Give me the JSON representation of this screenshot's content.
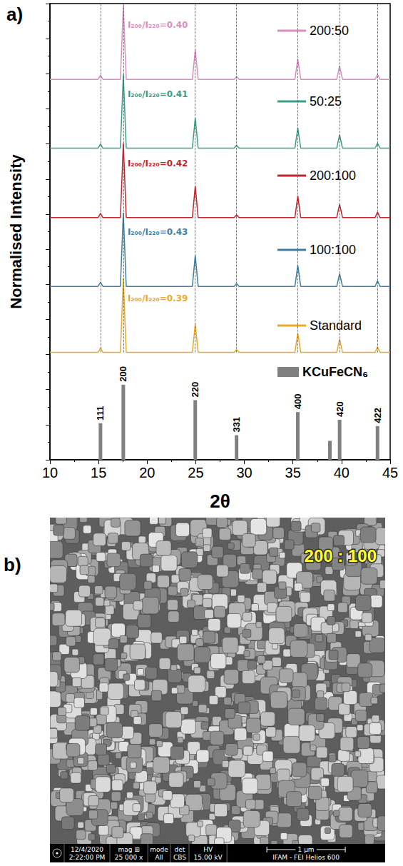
{
  "chart_data": {
    "type": "line",
    "panel_label": "a)",
    "xlabel": "2θ",
    "ylabel": "Normalised Intensity",
    "xlim": [
      10,
      45
    ],
    "xticks": [
      10,
      15,
      20,
      25,
      30,
      35,
      40,
      45
    ],
    "ylim": [
      0,
      13
    ],
    "yticks": [
      0,
      1,
      2,
      3,
      4,
      5,
      6,
      7,
      8,
      9,
      10,
      11,
      12,
      13
    ],
    "tick_labels": "x",
    "grid": false,
    "legend": "right",
    "x": [
      10,
      14.95,
      15.2,
      15.45,
      17.25,
      17.55,
      17.85,
      24.65,
      24.95,
      25.25,
      28.95,
      29.2,
      29.45,
      35.2,
      35.5,
      35.8,
      39.5,
      39.8,
      40.1,
      43.45,
      43.7,
      43.95,
      45
    ],
    "series": [
      {
        "name": "200:50",
        "color": "#d98ec0",
        "annotation": "I₂₀₀/I₂₂₀=0.40",
        "values": [
          10.84,
          10.84,
          10.96,
          10.84,
          10.84,
          12.94,
          10.84,
          10.84,
          11.68,
          10.84,
          10.84,
          10.92,
          10.84,
          10.84,
          11.42,
          10.84,
          10.84,
          11.22,
          10.84,
          10.84,
          10.98,
          10.84,
          10.84
        ]
      },
      {
        "name": "50:25",
        "color": "#3a9e86",
        "annotation": "I₂₀₀/I₂₂₀=0.41",
        "values": [
          8.88,
          8.88,
          9.0,
          8.88,
          8.88,
          10.98,
          8.88,
          8.88,
          9.74,
          8.88,
          8.88,
          8.96,
          8.88,
          8.88,
          9.46,
          8.88,
          8.88,
          9.26,
          8.88,
          8.88,
          9.02,
          8.88,
          8.88
        ]
      },
      {
        "name": "200:100",
        "color": "#c0262d",
        "annotation": "I₂₀₀/I₂₂₀=0.42",
        "values": [
          6.9,
          6.9,
          7.02,
          6.9,
          6.9,
          9.02,
          6.9,
          6.9,
          7.8,
          6.9,
          6.9,
          6.98,
          6.9,
          6.9,
          7.52,
          6.9,
          6.9,
          7.28,
          6.9,
          6.9,
          7.06,
          6.9,
          6.9
        ]
      },
      {
        "name": "100:100",
        "color": "#3f7f9f",
        "annotation": "I₂₀₀/I₂₂₀=0.43",
        "values": [
          4.94,
          4.94,
          5.06,
          4.94,
          4.94,
          7.04,
          4.94,
          4.94,
          5.82,
          4.94,
          4.94,
          5.02,
          4.94,
          4.94,
          5.54,
          4.94,
          4.94,
          5.3,
          4.94,
          4.94,
          5.1,
          4.94,
          4.94
        ]
      },
      {
        "name": "Standard",
        "color": "#e8a92b",
        "annotation": "I₂₀₀/I₂₂₀=0.39",
        "values": [
          3.06,
          3.06,
          3.18,
          3.06,
          3.06,
          5.16,
          3.06,
          3.06,
          3.86,
          3.06,
          3.06,
          3.14,
          3.06,
          3.06,
          3.61,
          3.06,
          3.06,
          3.44,
          3.06,
          3.06,
          3.22,
          3.06,
          3.06
        ]
      },
      {
        "name": "KCuFeCN₆",
        "type": "bar",
        "color": "#808080",
        "x": [
          15.2,
          17.55,
          24.95,
          29.2,
          35.5,
          38.8,
          39.8,
          43.7
        ],
        "values": [
          1.04,
          2.14,
          1.7,
          0.7,
          1.36,
          0.54,
          1.14,
          0.96
        ],
        "point_labels": [
          "111",
          "200",
          "220",
          "331",
          "400",
          null,
          "420",
          "422"
        ]
      }
    ],
    "reference_lines": [
      15.2,
      17.55,
      24.95,
      29.2,
      35.5,
      39.8,
      43.7
    ]
  },
  "figure_b": {
    "panel_label": "b)",
    "inset_label": "200 : 100",
    "info_bar": {
      "cells": [
        {
          "top": "12/4/2020",
          "bottom": "2:22:00 PM"
        },
        {
          "top": "mag ⊞",
          "bottom": "25 000 x"
        },
        {
          "top": "mode",
          "bottom": "All"
        },
        {
          "top": "det",
          "bottom": "CBS"
        },
        {
          "top": "HV",
          "bottom": "15.00 kV"
        }
      ],
      "scale_bar": "1 µm",
      "instrument": "IFAM - FEI Helios 600"
    }
  }
}
